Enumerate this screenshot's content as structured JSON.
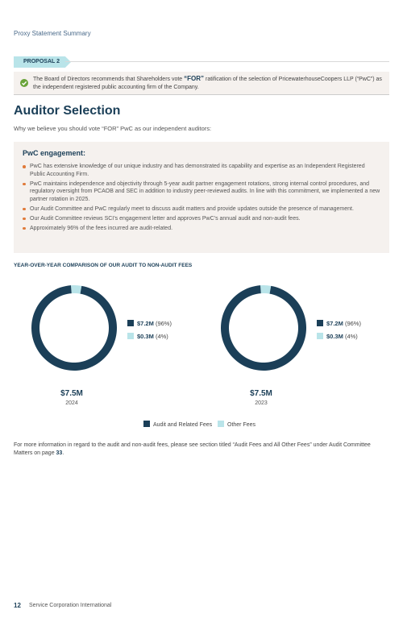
{
  "header": {
    "section": "Proxy Statement Summary"
  },
  "proposal": {
    "tag": "PROPOSAL 2",
    "rec_pre": "The Board of Directors recommends that Shareholders vote ",
    "rec_vote": "“FOR”",
    "rec_post": " ratification of the selection of PricewaterhouseCoopers LLP (“PwC”) as the independent registered public accounting firm of the Company."
  },
  "section": {
    "title": "Auditor Selection",
    "intro": "Why we believe you should vote “FOR” PwC as our independent auditors:"
  },
  "engagement": {
    "title": "PwC engagement:",
    "bullets": [
      "PwC has extensive knowledge of our unique industry and has demonstrated its capability and expertise as an Independent Registered Public Accounting Firm.",
      "PwC maintains independence and objectivity through 5-year audit partner engagement rotations, strong internal control procedures, and regulatory oversight from PCAOB and SEC in addition to industry peer-reviewed audits. In line with this commitment, we implemented a new partner rotation in 2025.",
      "Our Audit Committee and PwC regularly meet to discuss audit matters and provide updates outside the presence of management.",
      "Our Audit Committee reviews SCI’s engagement letter and approves PwC’s annual audit and non-audit fees.",
      "Approximately 96% of the fees incurred are audit-related."
    ]
  },
  "comparison_title": "YEAR-OVER-YEAR COMPARISON OF OUR AUDIT TO NON-AUDIT FEES",
  "charts": [
    {
      "audit_value": "$7.2M",
      "audit_pct": "(96%)",
      "other_value": "$0.3M",
      "other_pct": "(4%)",
      "total": "$7.5M",
      "year": "2024"
    },
    {
      "audit_value": "$7.2M",
      "audit_pct": "(96%)",
      "other_value": "$0.3M",
      "other_pct": "(4%)",
      "total": "$7.5M",
      "year": "2023"
    }
  ],
  "chart_data": [
    {
      "type": "pie",
      "categories": [
        "Audit and Related Fees",
        "Other Fees"
      ],
      "values": [
        96,
        4
      ],
      "title": "",
      "center_total": "$7.5M",
      "caption": "2024",
      "colors": [
        "#1b3f58",
        "#b9e4e9"
      ]
    },
    {
      "type": "pie",
      "categories": [
        "Audit and Related Fees",
        "Other Fees"
      ],
      "values": [
        96,
        4
      ],
      "title": "",
      "center_total": "$7.5M",
      "caption": "2023",
      "colors": [
        "#1b3f58",
        "#b9e4e9"
      ]
    }
  ],
  "legend": {
    "audit": "Audit and Related Fees",
    "other": "Other Fees"
  },
  "colors": {
    "navy": "#1b3f58",
    "teal": "#b9e4e9",
    "accent": "#e07a3a",
    "check": "#6aa339"
  },
  "footer": {
    "note_pre": "For more information in regard to the audit and non-audit fees, please see section titled “Audit Fees and All Other Fees” under Audit Committee Matters on page ",
    "note_page": "33",
    "note_post": ".",
    "page_number": "12",
    "org": "Service Corporation International"
  }
}
